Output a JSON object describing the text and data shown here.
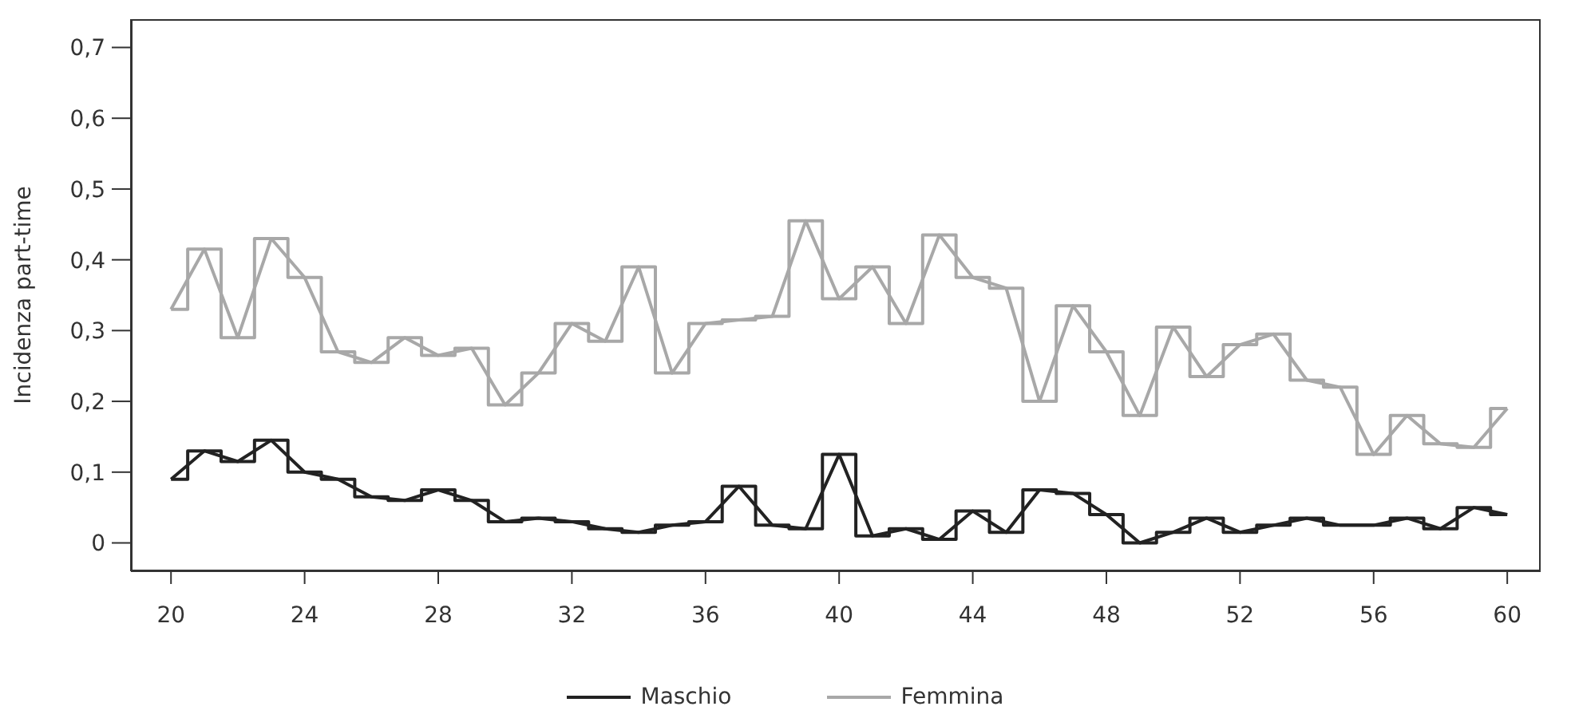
{
  "chart_data": {
    "type": "line",
    "ylabel": "Incidenza part-time",
    "x": [
      20,
      21,
      22,
      23,
      24,
      25,
      26,
      27,
      28,
      29,
      30,
      31,
      32,
      33,
      34,
      35,
      36,
      37,
      38,
      39,
      40,
      41,
      42,
      43,
      44,
      45,
      46,
      47,
      48,
      49,
      50,
      51,
      52,
      53,
      54,
      55,
      56,
      57,
      58,
      59,
      60
    ],
    "series": [
      {
        "name": "Maschio",
        "type": "line",
        "color": "#222222",
        "values": [
          0.09,
          0.13,
          0.115,
          0.145,
          0.1,
          0.09,
          0.065,
          0.06,
          0.075,
          0.06,
          0.03,
          0.035,
          0.03,
          0.02,
          0.015,
          0.025,
          0.03,
          0.08,
          0.025,
          0.02,
          0.125,
          0.01,
          0.02,
          0.005,
          0.045,
          0.015,
          0.075,
          0.07,
          0.04,
          0.0,
          0.015,
          0.035,
          0.015,
          0.025,
          0.035,
          0.025,
          0.025,
          0.035,
          0.02,
          0.05,
          0.04
        ]
      },
      {
        "type": "step",
        "color": "#222222",
        "values": [
          0.09,
          0.13,
          0.115,
          0.145,
          0.1,
          0.09,
          0.065,
          0.06,
          0.075,
          0.06,
          0.03,
          0.035,
          0.03,
          0.02,
          0.015,
          0.025,
          0.03,
          0.08,
          0.025,
          0.02,
          0.125,
          0.01,
          0.02,
          0.005,
          0.045,
          0.015,
          0.075,
          0.07,
          0.04,
          0.0,
          0.015,
          0.035,
          0.015,
          0.025,
          0.035,
          0.025,
          0.025,
          0.035,
          0.02,
          0.05,
          0.04
        ]
      },
      {
        "name": "Femmina",
        "type": "line",
        "color": "#a8a8a8",
        "values": [
          0.33,
          0.415,
          0.29,
          0.43,
          0.375,
          0.27,
          0.255,
          0.29,
          0.265,
          0.275,
          0.195,
          0.24,
          0.31,
          0.285,
          0.39,
          0.24,
          0.31,
          0.315,
          0.32,
          0.455,
          0.345,
          0.39,
          0.31,
          0.435,
          0.375,
          0.36,
          0.2,
          0.335,
          0.27,
          0.18,
          0.305,
          0.235,
          0.28,
          0.295,
          0.23,
          0.22,
          0.125,
          0.18,
          0.14,
          0.135,
          0.19
        ]
      },
      {
        "type": "step",
        "color": "#a8a8a8",
        "values": [
          0.33,
          0.415,
          0.29,
          0.43,
          0.375,
          0.27,
          0.255,
          0.29,
          0.265,
          0.275,
          0.195,
          0.24,
          0.31,
          0.285,
          0.39,
          0.24,
          0.31,
          0.315,
          0.32,
          0.455,
          0.345,
          0.39,
          0.31,
          0.435,
          0.375,
          0.36,
          0.2,
          0.335,
          0.27,
          0.18,
          0.305,
          0.235,
          0.28,
          0.295,
          0.23,
          0.22,
          0.125,
          0.18,
          0.14,
          0.135,
          0.19
        ]
      }
    ],
    "xlim": [
      18.8,
      61
    ],
    "xticks": [
      20,
      24,
      28,
      32,
      36,
      40,
      44,
      48,
      52,
      56,
      60
    ],
    "ylim": [
      -0.04,
      0.74
    ],
    "yticks": [
      0,
      {
        "value": 0.1,
        "label": "0,1"
      },
      {
        "value": 0.2,
        "label": "0,2"
      },
      {
        "value": 0.3,
        "label": "0,3"
      },
      {
        "value": 0.4,
        "label": "0,4"
      },
      {
        "value": 0.5,
        "label": "0,5"
      },
      {
        "value": 0.6,
        "label": "0,6"
      },
      {
        "value": 0.7,
        "label": "0,7"
      }
    ],
    "grid": false,
    "legend": "bottom",
    "marker": "none",
    "line_style": "solid"
  }
}
